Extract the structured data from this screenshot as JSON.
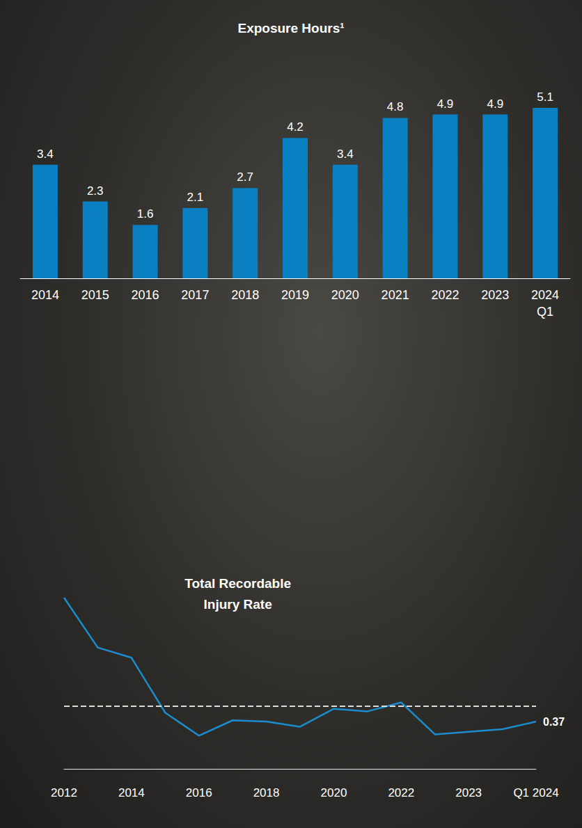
{
  "chart_data": [
    {
      "type": "bar",
      "title": "Exposure Hours¹",
      "categories": [
        "2014",
        "2015",
        "2016",
        "2017",
        "2018",
        "2019",
        "2020",
        "2021",
        "2022",
        "2023",
        "2024 Q1"
      ],
      "values": [
        3.4,
        2.3,
        1.6,
        2.1,
        2.7,
        4.2,
        3.4,
        4.8,
        4.9,
        4.9,
        5.1
      ],
      "color": "#0a7fc1",
      "ylim": [
        0,
        5.1
      ],
      "data_labels": true,
      "tick_labels": "x",
      "grid": false
    },
    {
      "type": "line",
      "title": "Total Recordable Injury Rate",
      "categories": [
        "2012",
        null,
        "2014",
        null,
        "2016",
        null,
        "2018",
        null,
        "2020",
        null,
        "2022",
        null,
        "2023",
        null,
        "Q1 2024"
      ],
      "values": [
        1.34,
        0.95,
        0.87,
        0.44,
        0.26,
        0.38,
        0.37,
        0.33,
        0.47,
        0.45,
        0.52,
        0.27,
        0.29,
        0.31,
        0.37
      ],
      "value_labels": [
        null,
        null,
        null,
        null,
        null,
        null,
        null,
        null,
        null,
        null,
        null,
        null,
        null,
        null,
        "0.37"
      ],
      "color": "#1b8dcc",
      "ylim": [
        0,
        1.4
      ],
      "reference_line": 0.49,
      "tick_labels": "x",
      "grid": false
    }
  ]
}
